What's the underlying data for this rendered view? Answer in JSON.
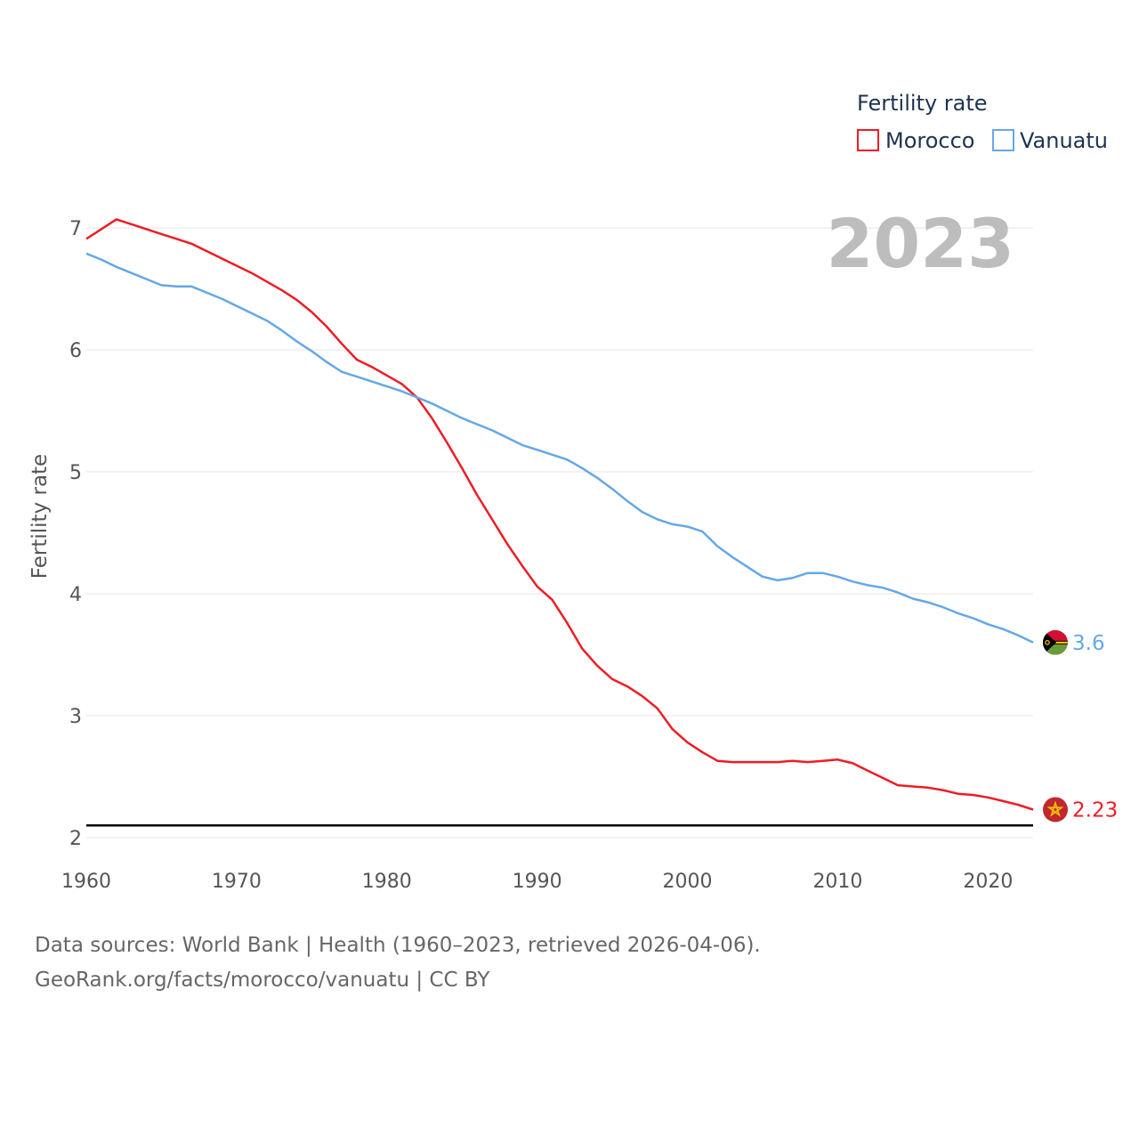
{
  "chart_data": {
    "type": "line",
    "legend_title": "Fertility rate",
    "ylabel": "Fertility rate",
    "xlabel": "",
    "year_label": "2023",
    "xlim": [
      1960,
      2023
    ],
    "ylim": [
      2,
      7
    ],
    "x_ticks": [
      1960,
      1970,
      1980,
      1990,
      2000,
      2010,
      2020
    ],
    "y_ticks": [
      2,
      3,
      4,
      5,
      6,
      7
    ],
    "x": [
      1960,
      1961,
      1962,
      1963,
      1964,
      1965,
      1966,
      1967,
      1968,
      1969,
      1970,
      1971,
      1972,
      1973,
      1974,
      1975,
      1976,
      1977,
      1978,
      1979,
      1980,
      1981,
      1982,
      1983,
      1984,
      1985,
      1986,
      1987,
      1988,
      1989,
      1990,
      1991,
      1992,
      1993,
      1994,
      1995,
      1996,
      1997,
      1998,
      1999,
      2000,
      2001,
      2002,
      2003,
      2004,
      2005,
      2006,
      2007,
      2008,
      2009,
      2010,
      2011,
      2012,
      2013,
      2014,
      2015,
      2016,
      2017,
      2018,
      2019,
      2020,
      2021,
      2022,
      2023
    ],
    "reference_line": {
      "y": 2.1,
      "color": "#000000"
    },
    "series": [
      {
        "name": "Morocco",
        "color": "#ee1c25",
        "end_label": "2.23",
        "flag": "morocco-flag",
        "values": [
          6.91,
          6.99,
          7.07,
          7.03,
          6.99,
          6.95,
          6.91,
          6.87,
          6.81,
          6.75,
          6.69,
          6.63,
          6.56,
          6.49,
          6.41,
          6.31,
          6.19,
          6.05,
          5.92,
          5.86,
          5.79,
          5.72,
          5.61,
          5.44,
          5.24,
          5.03,
          4.81,
          4.61,
          4.41,
          4.23,
          4.06,
          3.95,
          3.76,
          3.55,
          3.41,
          3.3,
          3.24,
          3.16,
          3.06,
          2.89,
          2.78,
          2.7,
          2.63,
          2.62,
          2.62,
          2.62,
          2.62,
          2.63,
          2.62,
          2.63,
          2.64,
          2.61,
          2.55,
          2.49,
          2.43,
          2.42,
          2.41,
          2.39,
          2.36,
          2.35,
          2.33,
          2.3,
          2.27,
          2.23
        ]
      },
      {
        "name": "Vanuatu",
        "color": "#64a8e8",
        "end_label": "3.6",
        "flag": "vanuatu-flag",
        "values": [
          6.79,
          6.74,
          6.68,
          6.63,
          6.58,
          6.53,
          6.52,
          6.52,
          6.47,
          6.42,
          6.36,
          6.3,
          6.24,
          6.16,
          6.07,
          5.99,
          5.9,
          5.82,
          5.78,
          5.74,
          5.7,
          5.66,
          5.61,
          5.56,
          5.5,
          5.44,
          5.39,
          5.34,
          5.28,
          5.22,
          5.18,
          5.14,
          5.1,
          5.03,
          4.95,
          4.86,
          4.76,
          4.67,
          4.61,
          4.57,
          4.55,
          4.51,
          4.39,
          4.3,
          4.22,
          4.14,
          4.11,
          4.13,
          4.17,
          4.17,
          4.14,
          4.1,
          4.07,
          4.05,
          4.01,
          3.96,
          3.93,
          3.89,
          3.84,
          3.8,
          3.75,
          3.71,
          3.66,
          3.6
        ]
      }
    ]
  },
  "source": {
    "line1": "Data sources: World Bank | Health (1960–2023, retrieved 2026-04-06).",
    "line2": "GeoRank.org/facts/morocco/vanuatu | CC BY"
  }
}
